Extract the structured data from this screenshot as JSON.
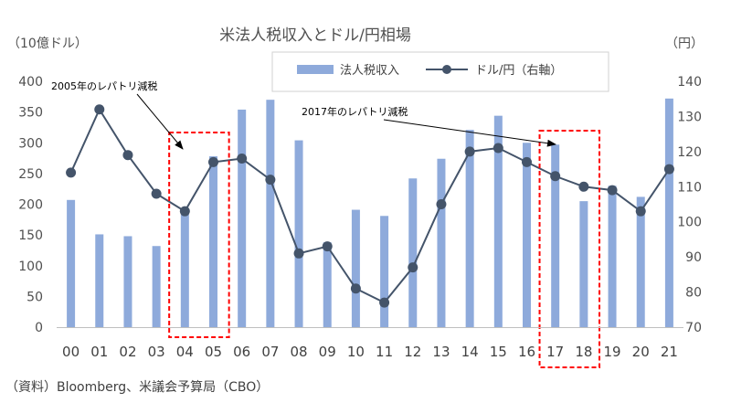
{
  "chart_data": {
    "type": "bar+line",
    "title": "米法人税収入とドル/円相場",
    "left_axis_unit": "（10億ドル）",
    "right_axis_unit": "（円）",
    "categories": [
      "00",
      "01",
      "02",
      "03",
      "04",
      "05",
      "06",
      "07",
      "08",
      "09",
      "10",
      "11",
      "12",
      "13",
      "14",
      "15",
      "16",
      "17",
      "18",
      "19",
      "20",
      "21"
    ],
    "series": [
      {
        "name": "法人税収入",
        "type": "bar",
        "axis": "left",
        "color": "#8eaadb",
        "values": [
          207,
          151,
          148,
          132,
          189,
          278,
          354,
          370,
          304,
          138,
          191,
          181,
          242,
          274,
          321,
          344,
          300,
          297,
          205,
          230,
          212,
          372
        ]
      },
      {
        "name": "ドル/円（右軸）",
        "type": "line",
        "axis": "right",
        "color": "#44546a",
        "values": [
          114,
          132,
          119,
          108,
          103,
          117,
          118,
          112,
          91,
          93,
          81,
          77,
          87,
          105,
          120,
          121,
          117,
          113,
          110,
          109,
          103,
          115
        ]
      }
    ],
    "left_ylim": [
      0,
      400
    ],
    "left_ticks": [
      "0",
      "50",
      "100",
      "150",
      "200",
      "250",
      "300",
      "350",
      "400"
    ],
    "right_ylim": [
      70,
      140
    ],
    "right_ticks": [
      "70",
      "80",
      "90",
      "100",
      "110",
      "120",
      "130",
      "140"
    ],
    "legend_position": "top-center",
    "annotations": [
      {
        "text": "2005年のレパトリ減税",
        "highlight": [
          "04",
          "05"
        ],
        "color": "#ff0000"
      },
      {
        "text": "2017年のレパトリ減税",
        "highlight": [
          "17",
          "18"
        ],
        "color": "#ff0000"
      }
    ],
    "source": "（資料）Bloomberg、米議会予算局（CBO）"
  }
}
